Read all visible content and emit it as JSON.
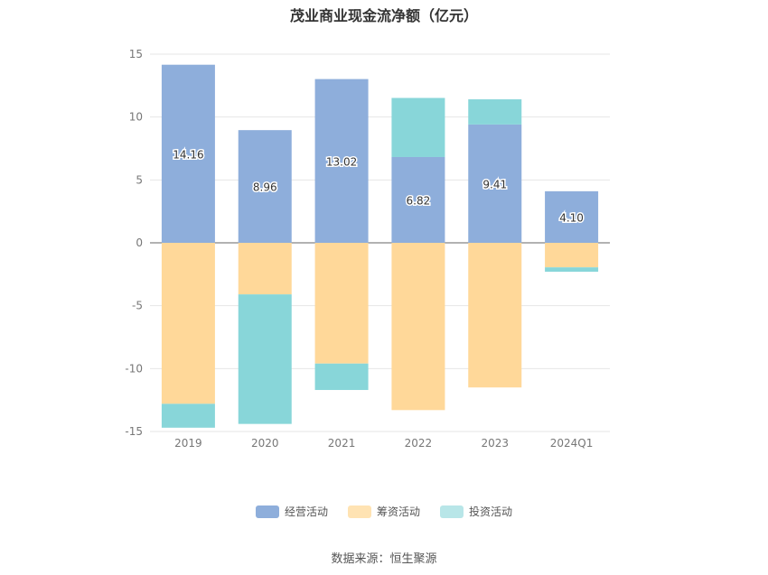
{
  "title": "茂业商业现金流净额（亿元）",
  "source": "数据来源：恒生聚源",
  "chart_data": {
    "type": "bar",
    "stacked": true,
    "categories": [
      "2019",
      "2020",
      "2021",
      "2022",
      "2023",
      "2024Q1"
    ],
    "series": [
      {
        "name": "经营活动",
        "color": "#8eaedb",
        "values": [
          14.16,
          8.96,
          13.02,
          6.82,
          9.41,
          4.1
        ],
        "labels": [
          "14.16",
          "8.96",
          "13.02",
          "6.82",
          "9.41",
          "4.10"
        ]
      },
      {
        "name": "筹资活动",
        "color": "#ffd899",
        "values": [
          -12.8,
          -4.1,
          -9.6,
          -13.3,
          -11.5,
          -1.95
        ]
      },
      {
        "name": "投资活动",
        "color": "#88d6d9",
        "values": [
          -1.9,
          -10.3,
          -2.1,
          4.7,
          2.0,
          -0.35
        ]
      }
    ],
    "ylim": [
      -15,
      15
    ],
    "yticks": [
      15,
      10,
      5,
      0,
      -5,
      -10,
      -15
    ],
    "legend_position": "bottom",
    "grid": true
  }
}
